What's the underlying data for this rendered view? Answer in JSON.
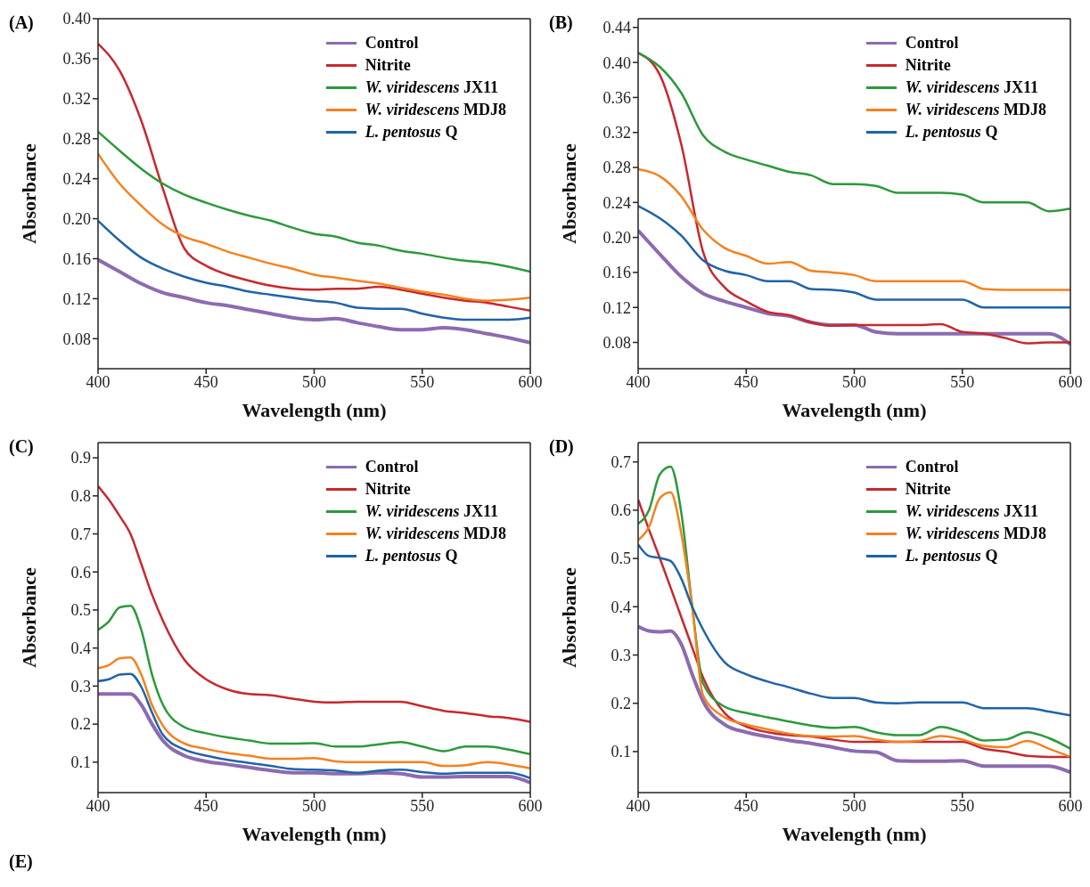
{
  "chart_data": [
    {
      "type": "line",
      "title": "(A)",
      "xlabel": "Wavelength (nm)",
      "ylabel": "Absorbance",
      "legend": "top right",
      "x": [
        400,
        410,
        420,
        430,
        440,
        450,
        460,
        470,
        480,
        490,
        500,
        510,
        520,
        530,
        540,
        550,
        560,
        570,
        580,
        590,
        600
      ],
      "xlim": [
        400,
        600
      ],
      "xticks": [
        400,
        450,
        500,
        550,
        600
      ],
      "ylim": [
        0.05,
        0.4
      ],
      "yticks": [
        {
          "value": 0.08,
          "label": "0.08"
        },
        {
          "value": 0.12,
          "label": "0.12"
        },
        {
          "value": 0.16,
          "label": "0.16"
        },
        {
          "value": 0.2,
          "label": "0.20"
        },
        {
          "value": 0.24,
          "label": "0.24"
        },
        {
          "value": 0.28,
          "label": "0.28"
        },
        {
          "value": 0.32,
          "label": "0.32"
        },
        {
          "value": 0.36,
          "label": "0.36"
        },
        {
          "value": 0.4,
          "label": "0.40"
        }
      ],
      "series": [
        {
          "name": "Control",
          "color": "#8c6bb1",
          "values": [
            0.159,
            0.147,
            0.135,
            0.126,
            0.121,
            0.116,
            0.113,
            0.109,
            0.105,
            0.101,
            0.099,
            0.1,
            0.096,
            0.092,
            0.089,
            0.089,
            0.091,
            0.089,
            0.085,
            0.081,
            0.076
          ]
        },
        {
          "name": "Nitrite",
          "color": "#c8282d",
          "values": [
            0.375,
            0.348,
            0.298,
            0.23,
            0.17,
            0.153,
            0.144,
            0.138,
            0.133,
            0.13,
            0.129,
            0.13,
            0.13,
            0.132,
            0.129,
            0.125,
            0.121,
            0.118,
            0.116,
            0.112,
            0.108
          ]
        },
        {
          "name": "W. viridescens JX11",
          "color": "#2a9a3a",
          "values": [
            0.287,
            0.268,
            0.25,
            0.235,
            0.224,
            0.216,
            0.209,
            0.203,
            0.198,
            0.191,
            0.185,
            0.182,
            0.176,
            0.173,
            0.168,
            0.165,
            0.161,
            0.158,
            0.156,
            0.152,
            0.147
          ]
        },
        {
          "name": "W. viridescens MDJ8",
          "color": "#f5821f",
          "values": [
            0.265,
            0.235,
            0.213,
            0.194,
            0.182,
            0.175,
            0.167,
            0.161,
            0.155,
            0.15,
            0.144,
            0.141,
            0.138,
            0.135,
            0.131,
            0.127,
            0.124,
            0.12,
            0.118,
            0.119,
            0.121
          ]
        },
        {
          "name": "L. pentosus Q",
          "color": "#1f63a8",
          "values": [
            0.198,
            0.178,
            0.161,
            0.15,
            0.142,
            0.136,
            0.132,
            0.127,
            0.124,
            0.121,
            0.118,
            0.116,
            0.111,
            0.11,
            0.11,
            0.105,
            0.101,
            0.099,
            0.099,
            0.099,
            0.101
          ]
        }
      ]
    },
    {
      "type": "line",
      "title": "(B)",
      "xlabel": "Wavelength (nm)",
      "ylabel": "Absorbance",
      "legend": "top right",
      "x": [
        400,
        410,
        420,
        430,
        440,
        450,
        460,
        470,
        480,
        490,
        500,
        510,
        520,
        530,
        540,
        550,
        560,
        570,
        580,
        590,
        600
      ],
      "xlim": [
        400,
        600
      ],
      "xticks": [
        400,
        450,
        500,
        550,
        600
      ],
      "ylim": [
        0.05,
        0.45
      ],
      "yticks": [
        {
          "value": 0.08,
          "label": "0.08"
        },
        {
          "value": 0.12,
          "label": "0.12"
        },
        {
          "value": 0.16,
          "label": "0.16"
        },
        {
          "value": 0.2,
          "label": "0.20"
        },
        {
          "value": 0.24,
          "label": "0.24"
        },
        {
          "value": 0.28,
          "label": "0.28"
        },
        {
          "value": 0.32,
          "label": "0.32"
        },
        {
          "value": 0.36,
          "label": "0.36"
        },
        {
          "value": 0.4,
          "label": "0.40"
        },
        {
          "value": 0.44,
          "label": "0.44"
        }
      ],
      "series": [
        {
          "name": "Control",
          "color": "#8c6bb1",
          "values": [
            0.208,
            0.181,
            0.155,
            0.136,
            0.127,
            0.12,
            0.113,
            0.11,
            0.103,
            0.1,
            0.1,
            0.092,
            0.09,
            0.09,
            0.09,
            0.09,
            0.09,
            0.09,
            0.09,
            0.09,
            0.078
          ]
        },
        {
          "name": "Nitrite",
          "color": "#c8282d",
          "values": [
            0.411,
            0.386,
            0.306,
            0.184,
            0.143,
            0.127,
            0.115,
            0.111,
            0.103,
            0.099,
            0.1,
            0.1,
            0.1,
            0.1,
            0.101,
            0.092,
            0.09,
            0.085,
            0.079,
            0.08,
            0.08
          ]
        },
        {
          "name": "W. viridescens JX11",
          "color": "#2a9a3a",
          "values": [
            0.411,
            0.395,
            0.365,
            0.317,
            0.298,
            0.289,
            0.282,
            0.275,
            0.271,
            0.261,
            0.261,
            0.259,
            0.251,
            0.251,
            0.251,
            0.249,
            0.24,
            0.24,
            0.24,
            0.23,
            0.233
          ]
        },
        {
          "name": "W. viridescens MDJ8",
          "color": "#f5821f",
          "values": [
            0.278,
            0.27,
            0.247,
            0.209,
            0.188,
            0.179,
            0.17,
            0.172,
            0.162,
            0.16,
            0.157,
            0.15,
            0.15,
            0.15,
            0.15,
            0.15,
            0.141,
            0.14,
            0.14,
            0.14,
            0.14
          ]
        },
        {
          "name": "L. pentosus Q",
          "color": "#1f63a8",
          "values": [
            0.236,
            0.222,
            0.202,
            0.174,
            0.162,
            0.157,
            0.15,
            0.15,
            0.141,
            0.14,
            0.137,
            0.129,
            0.129,
            0.129,
            0.129,
            0.129,
            0.12,
            0.12,
            0.12,
            0.12,
            0.12
          ]
        }
      ]
    },
    {
      "type": "line",
      "title": "(C)",
      "xlabel": "Wavelength (nm)",
      "ylabel": "Absorbance",
      "legend": "top right",
      "annotations": [
        "(E)"
      ],
      "x": [
        400,
        405,
        410,
        415,
        420,
        425,
        430,
        440,
        450,
        460,
        470,
        480,
        490,
        500,
        510,
        520,
        530,
        540,
        550,
        560,
        570,
        580,
        590,
        600
      ],
      "xlim": [
        400,
        600
      ],
      "xticks": [
        400,
        450,
        500,
        550,
        600
      ],
      "ylim": [
        0.02,
        0.94
      ],
      "yticks": [
        0.1,
        0.2,
        0.3,
        0.4,
        0.5,
        0.6,
        0.7,
        0.8,
        0.9
      ],
      "series": [
        {
          "name": "Control",
          "color": "#8c6bb1",
          "values": [
            0.279,
            0.279,
            0.279,
            0.279,
            0.251,
            0.2,
            0.157,
            0.117,
            0.102,
            0.094,
            0.086,
            0.078,
            0.072,
            0.072,
            0.07,
            0.07,
            0.072,
            0.07,
            0.061,
            0.061,
            0.062,
            0.062,
            0.062,
            0.046
          ]
        },
        {
          "name": "Nitrite",
          "color": "#c8282d",
          "values": [
            0.826,
            0.79,
            0.747,
            0.7,
            0.621,
            0.54,
            0.472,
            0.369,
            0.318,
            0.291,
            0.279,
            0.276,
            0.267,
            0.259,
            0.257,
            0.259,
            0.259,
            0.259,
            0.247,
            0.235,
            0.229,
            0.221,
            0.216,
            0.206
          ]
        },
        {
          "name": "W. viridescens JX11",
          "color": "#2a9a3a",
          "values": [
            0.448,
            0.47,
            0.507,
            0.511,
            0.448,
            0.33,
            0.251,
            0.192,
            0.176,
            0.165,
            0.157,
            0.149,
            0.149,
            0.15,
            0.141,
            0.141,
            0.147,
            0.153,
            0.141,
            0.129,
            0.141,
            0.141,
            0.133,
            0.121
          ]
        },
        {
          "name": "W. viridescens MDJ8",
          "color": "#f5821f",
          "values": [
            0.347,
            0.355,
            0.373,
            0.375,
            0.33,
            0.25,
            0.196,
            0.149,
            0.135,
            0.124,
            0.117,
            0.109,
            0.109,
            0.111,
            0.102,
            0.1,
            0.1,
            0.1,
            0.1,
            0.09,
            0.092,
            0.1,
            0.094,
            0.084
          ]
        },
        {
          "name": "L. pentosus Q",
          "color": "#1f63a8",
          "values": [
            0.313,
            0.318,
            0.33,
            0.332,
            0.298,
            0.23,
            0.172,
            0.133,
            0.117,
            0.106,
            0.098,
            0.09,
            0.082,
            0.08,
            0.078,
            0.072,
            0.078,
            0.08,
            0.074,
            0.07,
            0.072,
            0.072,
            0.072,
            0.058
          ]
        }
      ]
    },
    {
      "type": "line",
      "title": "(D)",
      "xlabel": "Wavelength (nm)",
      "ylabel": "Absorbance",
      "legend": "top right",
      "x": [
        400,
        405,
        410,
        415,
        420,
        425,
        430,
        440,
        450,
        460,
        470,
        480,
        490,
        500,
        510,
        520,
        530,
        540,
        550,
        560,
        570,
        580,
        590,
        600
      ],
      "xlim": [
        400,
        600
      ],
      "xticks": [
        400,
        450,
        500,
        550,
        600
      ],
      "ylim": [
        0.015,
        0.74
      ],
      "yticks": [
        0.1,
        0.2,
        0.3,
        0.4,
        0.5,
        0.6,
        0.7
      ],
      "series": [
        {
          "name": "Control",
          "color": "#8c6bb1",
          "values": [
            0.359,
            0.35,
            0.348,
            0.35,
            0.322,
            0.26,
            0.205,
            0.156,
            0.14,
            0.131,
            0.123,
            0.117,
            0.109,
            0.101,
            0.099,
            0.081,
            0.08,
            0.08,
            0.081,
            0.07,
            0.07,
            0.07,
            0.07,
            0.057
          ]
        },
        {
          "name": "Nitrite",
          "color": "#c8282d",
          "values": [
            0.622,
            0.56,
            0.501,
            0.44,
            0.378,
            0.316,
            0.254,
            0.18,
            0.152,
            0.14,
            0.134,
            0.131,
            0.125,
            0.12,
            0.12,
            0.12,
            0.12,
            0.12,
            0.12,
            0.106,
            0.1,
            0.091,
            0.089,
            0.089
          ]
        },
        {
          "name": "W. viridescens JX11",
          "color": "#2a9a3a",
          "values": [
            0.572,
            0.6,
            0.674,
            0.69,
            0.594,
            0.402,
            0.242,
            0.193,
            0.18,
            0.171,
            0.162,
            0.154,
            0.149,
            0.151,
            0.14,
            0.134,
            0.134,
            0.151,
            0.14,
            0.123,
            0.125,
            0.14,
            0.128,
            0.106
          ]
        },
        {
          "name": "W. viridescens MDJ8",
          "color": "#f5821f",
          "values": [
            0.538,
            0.565,
            0.625,
            0.637,
            0.551,
            0.4,
            0.217,
            0.171,
            0.156,
            0.146,
            0.137,
            0.132,
            0.131,
            0.132,
            0.125,
            0.12,
            0.122,
            0.132,
            0.125,
            0.112,
            0.109,
            0.122,
            0.106,
            0.089
          ]
        },
        {
          "name": "L. pentosus Q",
          "color": "#1f63a8",
          "values": [
            0.529,
            0.505,
            0.501,
            0.495,
            0.458,
            0.4,
            0.353,
            0.285,
            0.26,
            0.245,
            0.233,
            0.22,
            0.211,
            0.211,
            0.202,
            0.2,
            0.202,
            0.202,
            0.202,
            0.19,
            0.19,
            0.19,
            0.183,
            0.175
          ]
        }
      ]
    }
  ]
}
